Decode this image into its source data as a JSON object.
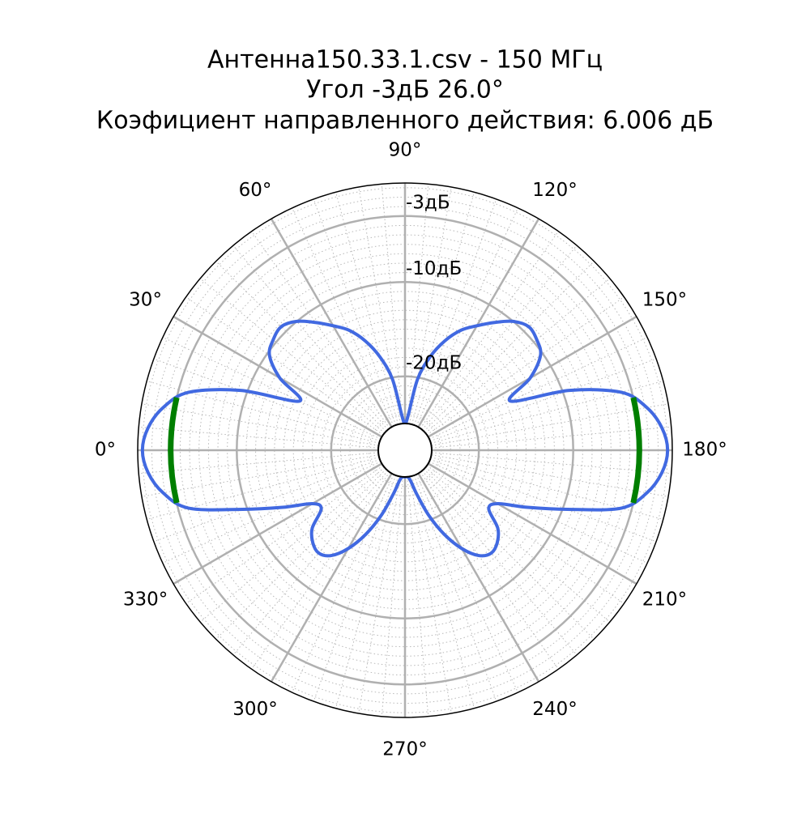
{
  "chart_data": {
    "type": "polar",
    "title": [
      "Антенна150.33.1.csv - 150 МГц",
      "Угол -3дБ 26.0°",
      "Коэфициент направленного действия: 6.006 дБ"
    ],
    "theta_zero": "W",
    "theta_direction": "clockwise",
    "rlim": [
      -25,
      0.5
    ],
    "rticks": [
      {
        "value": -3,
        "label": "-3дБ"
      },
      {
        "value": -10,
        "label": "-10дБ"
      },
      {
        "value": -20,
        "label": "-20дБ"
      }
    ],
    "rticks_minor": [
      -24,
      -23,
      -22,
      -21,
      -19,
      -18,
      -17,
      -16,
      -15,
      -14,
      -13,
      -12,
      -11,
      -9,
      -8,
      -7,
      -6,
      -5,
      -4,
      -2,
      -1,
      0
    ],
    "thetaticks": [
      {
        "value": 0,
        "label": "0°"
      },
      {
        "value": 30,
        "label": "30°"
      },
      {
        "value": 60,
        "label": "60°"
      },
      {
        "value": 90,
        "label": "90°"
      },
      {
        "value": 120,
        "label": "120°"
      },
      {
        "value": 150,
        "label": "150°"
      },
      {
        "value": 180,
        "label": "180°"
      },
      {
        "value": 210,
        "label": "210°"
      },
      {
        "value": 240,
        "label": "240°"
      },
      {
        "value": 270,
        "label": "270°"
      },
      {
        "value": 300,
        "label": "300°"
      },
      {
        "value": 330,
        "label": "330°"
      }
    ],
    "thetaticks_minor": [
      5,
      10,
      15,
      20,
      25,
      35,
      40,
      45,
      50,
      55,
      65,
      70,
      75,
      80,
      85,
      95,
      100,
      105,
      110,
      115,
      125,
      130,
      135,
      140,
      145,
      155,
      160,
      165,
      170,
      175,
      185,
      190,
      195,
      200,
      205,
      215,
      220,
      225,
      230,
      235,
      245,
      250,
      255,
      260,
      265,
      275,
      280,
      285,
      290,
      295,
      305,
      310,
      315,
      320,
      325,
      335,
      340,
      345,
      350,
      355
    ],
    "grid": true,
    "series": [
      {
        "color": "#4169e1",
        "closed": true,
        "x": [
          0,
          5,
          10,
          15,
          20,
          25,
          30,
          35,
          40,
          45,
          50,
          55,
          60,
          65,
          70,
          75,
          80,
          85,
          90,
          95,
          100,
          105,
          110,
          115,
          120,
          125,
          130,
          135,
          140,
          145,
          150,
          155,
          160,
          165,
          170,
          175,
          180,
          185,
          190,
          195,
          200,
          205,
          210,
          215,
          220,
          225,
          230,
          235,
          240,
          245,
          250,
          255,
          260,
          265,
          270,
          275,
          280,
          285,
          290,
          295,
          300,
          305,
          310,
          315,
          320,
          325,
          330,
          335,
          340,
          345,
          350,
          355
        ],
        "values": [
          0,
          -0.5,
          -1.8,
          -4.1,
          -9.3,
          -15.5,
          -12.5,
          -10.3,
          -9.6,
          -9.3,
          -10.0,
          -11.3,
          -12.6,
          -13.8,
          -15.5,
          -17.6,
          -20.2,
          -24.2,
          -25,
          -24.2,
          -20.2,
          -17.6,
          -15.5,
          -13.8,
          -12.6,
          -11.3,
          -10.0,
          -9.3,
          -9.6,
          -10.3,
          -12.5,
          -15.5,
          -9.3,
          -4.1,
          -1.8,
          -0.5,
          0,
          -0.5,
          -1.8,
          -4.1,
          -9.5,
          -13.5,
          -16.5,
          -17,
          -15,
          -14,
          -13.6,
          -14.2,
          -15.8,
          -18,
          -20.5,
          -23,
          -24.6,
          -25,
          -25,
          -25,
          -24.6,
          -23,
          -20.5,
          -18,
          -15.8,
          -14.2,
          -13.6,
          -14,
          -15,
          -17,
          -16.5,
          -13.5,
          -9.5,
          -4.1,
          -1.8,
          -0.5
        ]
      },
      {
        "color": "#007f00",
        "x": [
          -13,
          13
        ],
        "values": [
          -3,
          -3
        ]
      },
      {
        "color": "#007f00",
        "x": [
          167,
          193
        ],
        "values": [
          -3,
          -3
        ]
      }
    ]
  }
}
